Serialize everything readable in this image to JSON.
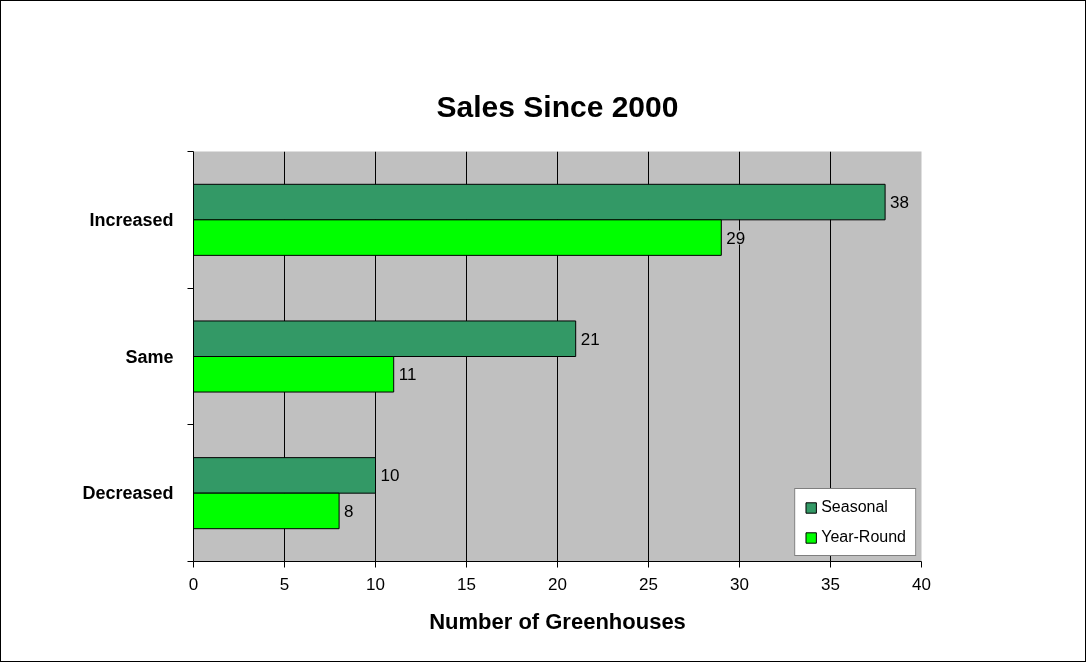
{
  "chart_data": {
    "type": "bar",
    "orientation": "horizontal",
    "title": "Sales Since 2000",
    "xlabel": "Number of Greenhouses",
    "categories": [
      "Increased",
      "Same",
      "Decreased"
    ],
    "series": [
      {
        "name": "Seasonal",
        "color": "#339966",
        "values": [
          38,
          21,
          10
        ]
      },
      {
        "name": "Year-Round",
        "color": "#00ff00",
        "values": [
          29,
          11,
          8
        ]
      }
    ],
    "xlim": [
      0,
      40
    ],
    "xticks": [
      0,
      5,
      10,
      15,
      20,
      25,
      30,
      35,
      40
    ],
    "grid": "x",
    "legend": "bottom right",
    "data_labels": true
  }
}
